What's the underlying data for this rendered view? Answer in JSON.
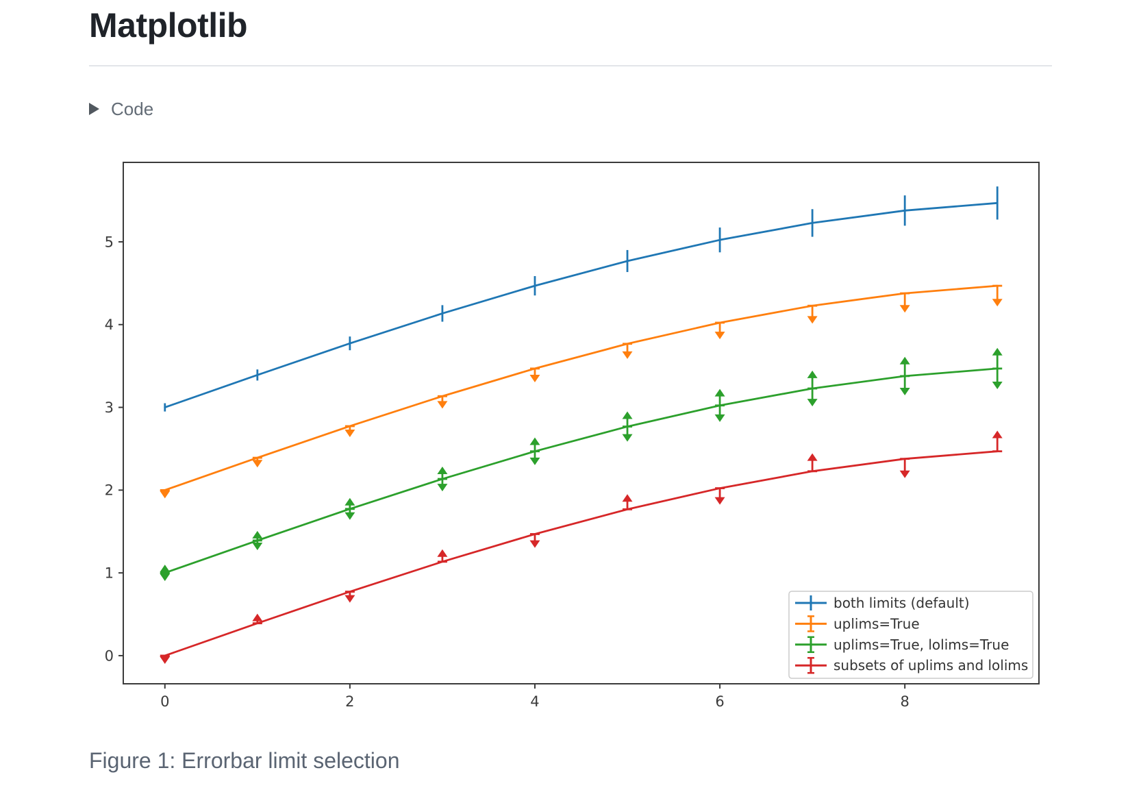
{
  "page": {
    "title": "Matplotlib",
    "code_toggle_label": "Code",
    "caption": "Figure 1: Errorbar limit selection"
  },
  "icons": {
    "code_disclosure": "collapsed-triangle-right"
  },
  "colors": {
    "title_text": "#1f2329",
    "muted_text": "#636c76",
    "caption_text": "#5a6472",
    "axis": "#3b3b3b",
    "legend_border": "#cbcbcb"
  },
  "chart_data": {
    "type": "line",
    "title": "",
    "xlabel": "",
    "ylabel": "",
    "grid": false,
    "x": [
      0,
      1,
      2,
      3,
      4,
      5,
      6,
      7,
      8,
      9
    ],
    "yerr": [
      0.05,
      0.067,
      0.083,
      0.1,
      0.117,
      0.133,
      0.15,
      0.167,
      0.183,
      0.2
    ],
    "series": [
      {
        "name": "both limits (default)",
        "color": "#1f77b4",
        "values": [
          3.0,
          3.391,
          3.773,
          4.135,
          4.469,
          4.768,
          5.023,
          5.228,
          5.378,
          5.469
        ],
        "uplims": [
          false,
          false,
          false,
          false,
          false,
          false,
          false,
          false,
          false,
          false
        ],
        "lolims": [
          false,
          false,
          false,
          false,
          false,
          false,
          false,
          false,
          false,
          false
        ]
      },
      {
        "name": "uplims=True",
        "color": "#ff7f0e",
        "values": [
          2.0,
          2.391,
          2.773,
          3.135,
          3.469,
          3.768,
          4.023,
          4.228,
          4.378,
          4.469
        ],
        "uplims": [
          true,
          true,
          true,
          true,
          true,
          true,
          true,
          true,
          true,
          true
        ],
        "lolims": [
          false,
          false,
          false,
          false,
          false,
          false,
          false,
          false,
          false,
          false
        ]
      },
      {
        "name": "uplims=True, lolims=True",
        "color": "#2ca02c",
        "values": [
          1.0,
          1.391,
          1.773,
          2.135,
          2.469,
          2.768,
          3.023,
          3.228,
          3.378,
          3.469
        ],
        "uplims": [
          true,
          true,
          true,
          true,
          true,
          true,
          true,
          true,
          true,
          true
        ],
        "lolims": [
          true,
          true,
          true,
          true,
          true,
          true,
          true,
          true,
          true,
          true
        ]
      },
      {
        "name": "subsets of uplims and lolims",
        "color": "#d62728",
        "values": [
          0.0,
          0.391,
          0.773,
          1.135,
          1.469,
          1.768,
          2.023,
          2.228,
          2.378,
          2.469
        ],
        "uplims": [
          true,
          false,
          true,
          false,
          true,
          false,
          true,
          false,
          true,
          false
        ],
        "lolims": [
          false,
          true,
          false,
          true,
          false,
          true,
          false,
          true,
          false,
          true
        ]
      }
    ],
    "xticks": [
      "0",
      "2",
      "4",
      "6",
      "8"
    ],
    "xtick_values": [
      0,
      2,
      4,
      6,
      8
    ],
    "yticks": [
      "0",
      "1",
      "2",
      "3",
      "4",
      "5"
    ],
    "ytick_values": [
      0,
      1,
      2,
      3,
      4,
      5
    ],
    "xlim": [
      -0.45,
      9.45
    ],
    "ylim": [
      -0.34,
      5.96
    ],
    "legend": {
      "position": "lower right",
      "entries": [
        "both limits (default)",
        "uplims=True",
        "uplims=True, lolims=True",
        "subsets of uplims and lolims"
      ]
    }
  }
}
